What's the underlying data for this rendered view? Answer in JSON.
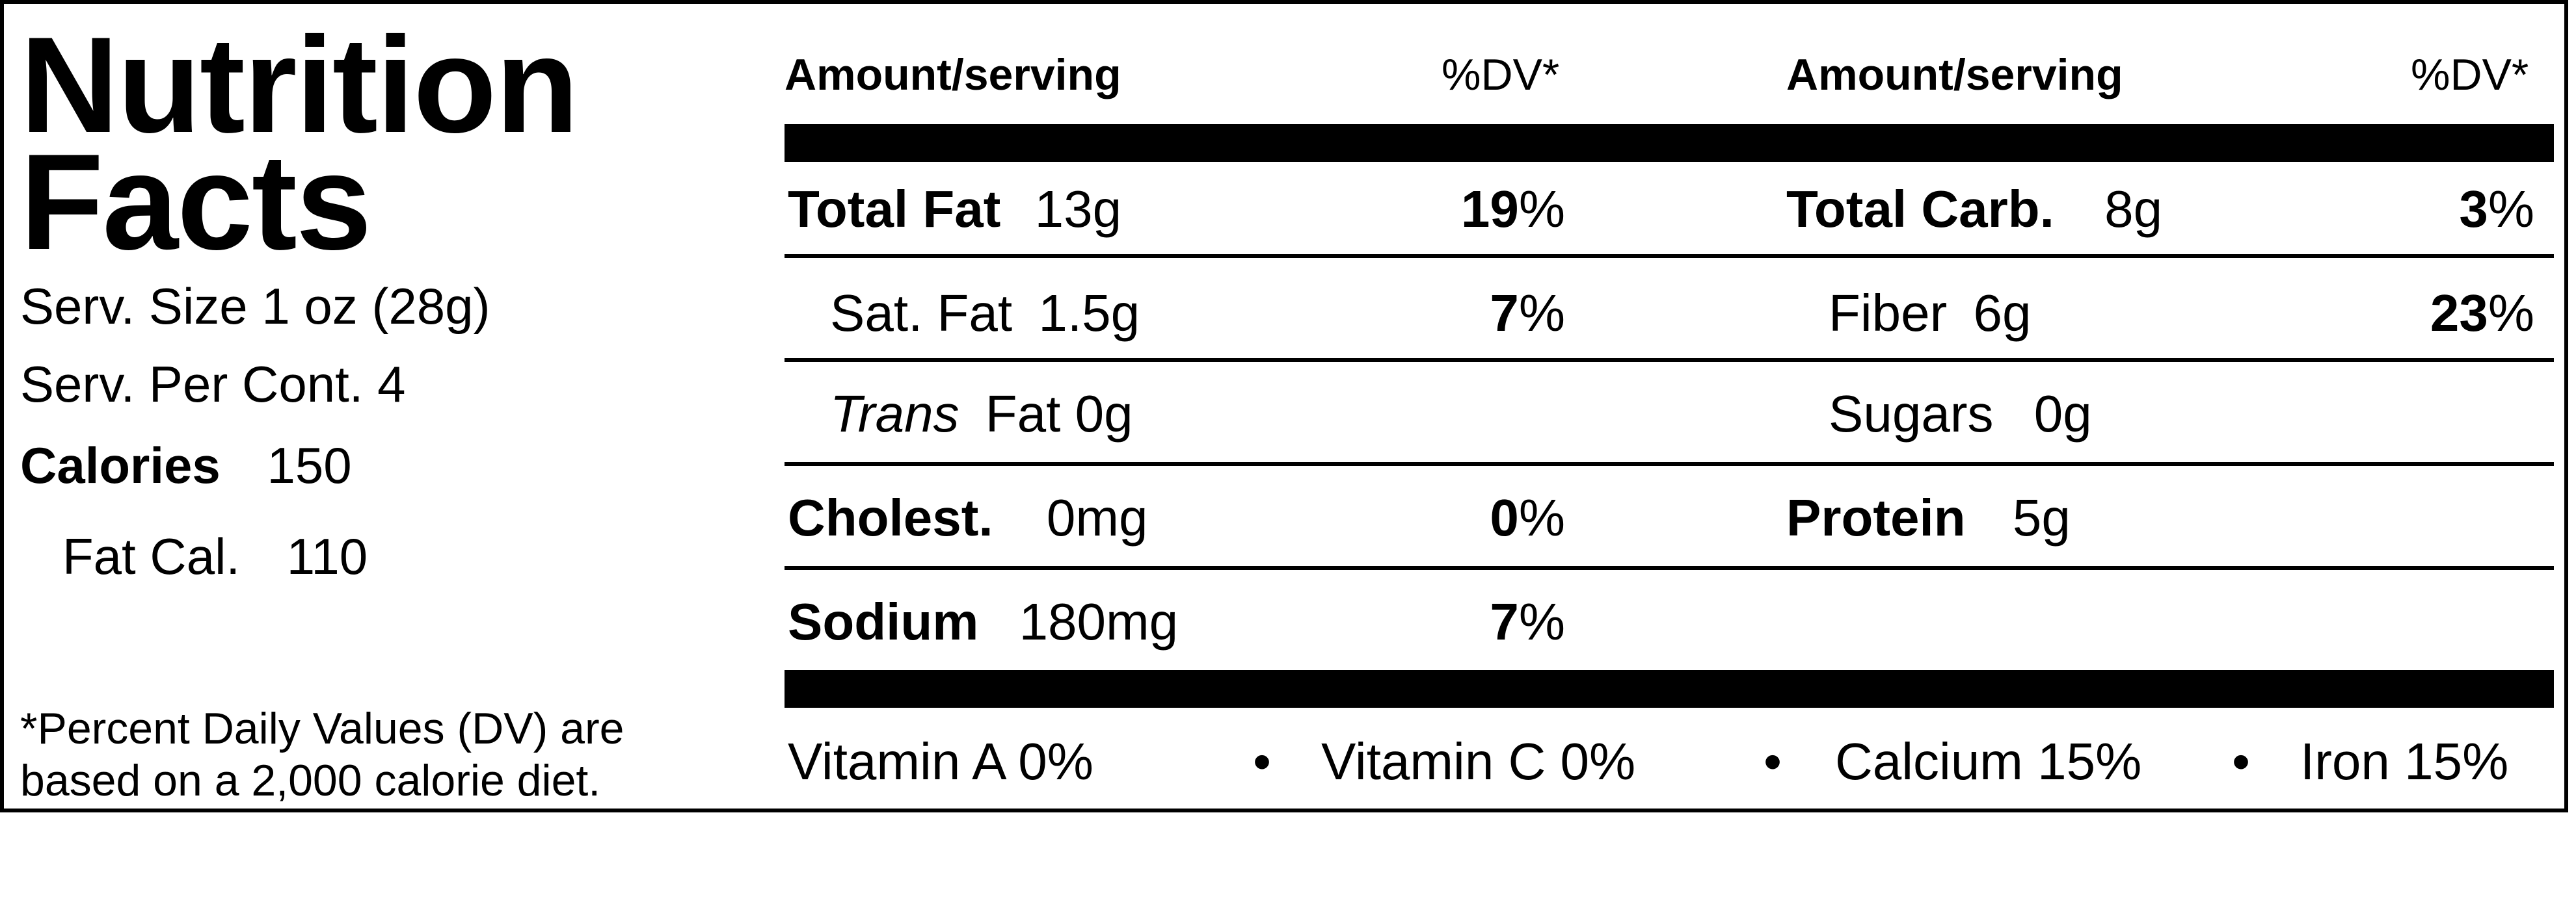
{
  "title": {
    "line1": "Nutrition",
    "line2": "Facts"
  },
  "serving": {
    "size_label": "Serv. Size 1  oz  (28g)",
    "per_container": "Serv. Per Cont. 4",
    "calories_label": "Calories",
    "calories_value": "150",
    "fat_cal_label": "Fat Cal.",
    "fat_cal_value": "110"
  },
  "footnote": {
    "line1": "*Percent Daily Values (DV) are",
    "line2": "based on a 2,000 calorie diet."
  },
  "headers": {
    "amount": "Amount/serving",
    "dv": "%DV*"
  },
  "left_column": {
    "total_fat": {
      "label": "Total Fat",
      "amount": "13g",
      "dv": "19",
      "pct": "%"
    },
    "sat_fat": {
      "label": "Sat. Fat",
      "amount": "1.5g",
      "dv": "7",
      "pct": "%"
    },
    "trans_fat": {
      "label_italic": "Trans",
      "label": "Fat",
      "amount": "0g"
    },
    "cholesterol": {
      "label": "Cholest.",
      "amount": "0mg",
      "dv": "0",
      "pct": "%"
    },
    "sodium": {
      "label": "Sodium",
      "amount": "180mg",
      "dv": "7",
      "pct": "%"
    }
  },
  "right_column": {
    "total_carb": {
      "label": "Total Carb.",
      "amount": "8g",
      "dv": "3",
      "pct": "%"
    },
    "fiber": {
      "label": "Fiber",
      "amount": "6g",
      "dv": "23",
      "pct": "%"
    },
    "sugars": {
      "label": "Sugars",
      "amount": "0g"
    },
    "protein": {
      "label": "Protein",
      "amount": "5g"
    }
  },
  "vitamins": {
    "vitamin_a": "Vitamin A  0%",
    "vitamin_c": "Vitamin C 0%",
    "calcium": "Calcium 15%",
    "iron": "Iron  15%",
    "bullet": "•"
  }
}
